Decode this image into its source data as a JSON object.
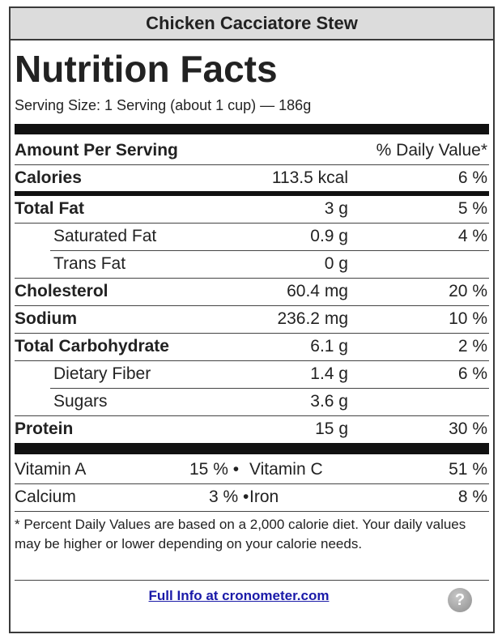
{
  "header": {
    "title": "Chicken Cacciatore Stew"
  },
  "label": {
    "heading": "Nutrition Facts",
    "serving_size": "Serving Size: 1 Serving (about 1 cup) — 186g",
    "amount_per_serving": "Amount Per Serving",
    "daily_value_header": "% Daily Value*"
  },
  "nutrients": [
    {
      "name": "Calories",
      "amount": "113.5 kcal",
      "dv": "6 %"
    },
    {
      "name": "Total Fat",
      "amount": "3 g",
      "dv": "5 %"
    },
    {
      "name": "Saturated Fat",
      "amount": "0.9 g",
      "dv": "4 %"
    },
    {
      "name": "Trans Fat",
      "amount": "0 g",
      "dv": ""
    },
    {
      "name": "Cholesterol",
      "amount": "60.4 mg",
      "dv": "20 %"
    },
    {
      "name": "Sodium",
      "amount": "236.2 mg",
      "dv": "10 %"
    },
    {
      "name": "Total Carbohydrate",
      "amount": "6.1 g",
      "dv": "2 %"
    },
    {
      "name": "Dietary Fiber",
      "amount": "1.4 g",
      "dv": "6 %"
    },
    {
      "name": "Sugars",
      "amount": "3.6 g",
      "dv": ""
    },
    {
      "name": "Protein",
      "amount": "15 g",
      "dv": "30 %"
    }
  ],
  "vitamins": {
    "row1": {
      "left_name": "Vitamin A",
      "left_dv": "15 % •",
      "right_name": "Vitamin C",
      "right_dv": "51 %"
    },
    "row2": {
      "left_name": "Calcium",
      "left_dv": "3 % •",
      "right_name": "Iron",
      "right_dv": "8 %"
    }
  },
  "footnote": "* Percent Daily Values are based on a 2,000 calorie diet. Your daily values may be higher or lower depending on your calorie needs.",
  "footer": {
    "link_text": "Full Info at cronometer.com",
    "help_glyph": "?",
    "help_icon": "question-mark-icon"
  }
}
